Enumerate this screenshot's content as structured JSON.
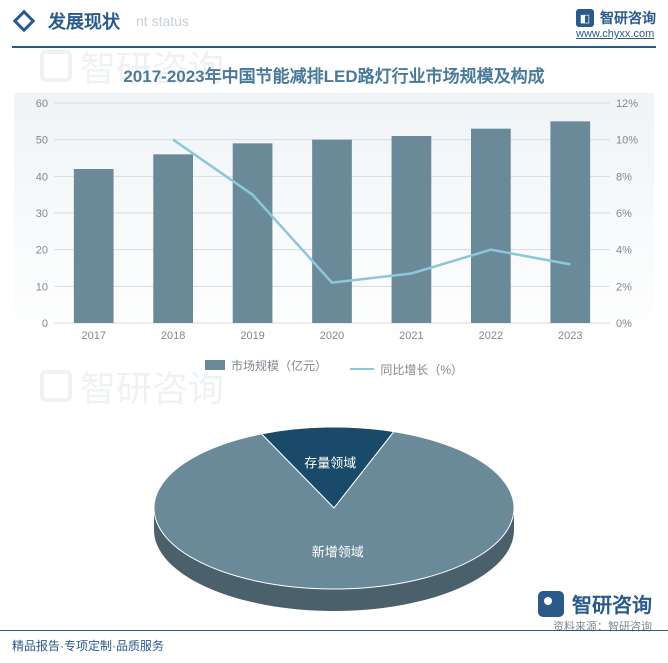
{
  "header": {
    "title": "发展现状",
    "subtitle": "nt status",
    "brand": "智研咨询",
    "url": "www.chyxx.com"
  },
  "chart": {
    "type": "bar+line",
    "title": "2017-2023年中国节能减排LED路灯行业市场规模及构成",
    "categories": [
      "2017",
      "2018",
      "2019",
      "2020",
      "2021",
      "2022",
      "2023"
    ],
    "bar_values": [
      42,
      46,
      49,
      50,
      51,
      53,
      55
    ],
    "line_values": [
      null,
      10.0,
      7.0,
      2.2,
      2.7,
      4.0,
      3.2
    ],
    "y1_min": 0,
    "y1_max": 60,
    "y1_step": 10,
    "y2_min": 0,
    "y2_max": 12,
    "y2_step": 2,
    "bar_color": "#6a8a9a",
    "line_color": "#8cc8d8",
    "grid_color": "#d8dce0",
    "axis_text_color": "#808890",
    "background_gradient": [
      "#f0f4f7",
      "#ffffff"
    ],
    "legend_bar": "市场规模（亿元）",
    "legend_line": "同比增长（%）",
    "bar_width_ratio": 0.5,
    "font_size_axis": 11,
    "font_size_title": 17
  },
  "pie": {
    "type": "pie3d",
    "slices": [
      {
        "label": "存量领域",
        "value": 12,
        "color": "#1a4a6a"
      },
      {
        "label": "新增领域",
        "value": 88,
        "color": "#6a8a9a"
      }
    ],
    "label_color": "#ffffff",
    "label_fontsize": 13,
    "tilt": 0.45,
    "depth": 22
  },
  "footer": {
    "left": "精品报告·专项定制·品质服务",
    "source": "资料来源：智研咨询"
  },
  "watermark": "智研咨询"
}
